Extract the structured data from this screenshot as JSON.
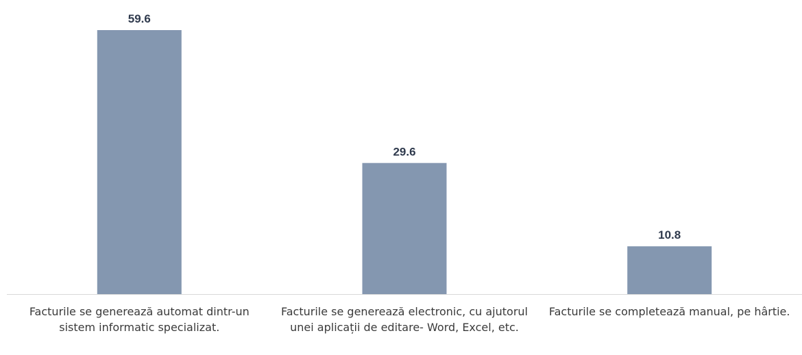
{
  "chart_data": {
    "type": "bar",
    "title": "",
    "xlabel": "",
    "ylabel": "",
    "categories": [
      "Facturile se generează automat dintr-un sistem informatic specializat.",
      "Facturile se generează electronic, cu ajutorul unei aplicații de editare- Word, Excel, etc.",
      "Facturile se completează manual, pe hârtie."
    ],
    "values": [
      59.6,
      29.6,
      10.8
    ],
    "value_labels": [
      "59.6",
      "29.6",
      "10.8"
    ],
    "ylim": [
      0,
      59.6
    ],
    "grid": false,
    "legend": "none",
    "colors": {
      "bar": "#8497b0",
      "axis": "#d9d9d9",
      "value_text": "#2f3a4d",
      "category_text": "#3a3a3a"
    }
  }
}
